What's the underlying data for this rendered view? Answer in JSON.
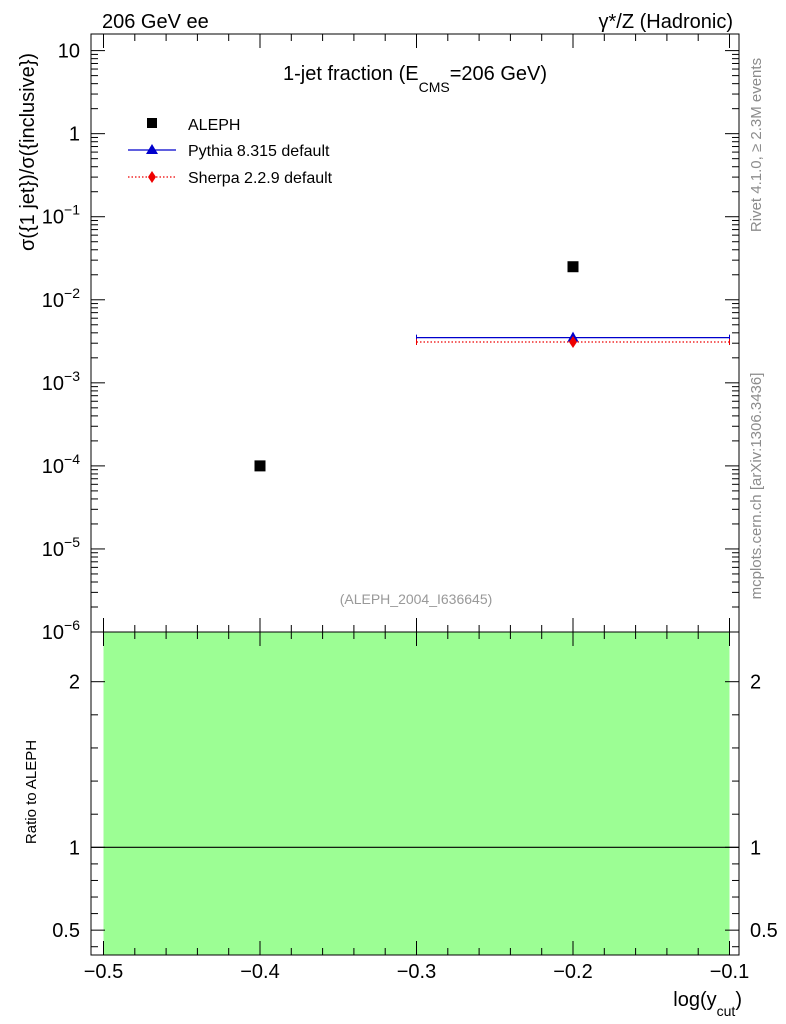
{
  "header": {
    "left_label": "206 GeV ee",
    "right_label": "γ*/Z (Hadronic)"
  },
  "side_labels": {
    "rivet": "Rivet 4.1.0, ≥ 2.3M events",
    "mcplots": "mcplots.cern.ch [arXiv:1306.3436]"
  },
  "colors": {
    "aleph": "#000000",
    "pythia": "#0000cc",
    "sherpa": "#ee0000",
    "ratio_band": "#9cfe94",
    "watermark": "#999999",
    "side_label": "#8c8c8c"
  },
  "chart_data": {
    "type": "scatter",
    "title": "1-jet fraction (E",
    "title_sub": "CMS",
    "title_tail": "=206 GeV)",
    "ylabel": "σ({1 jet})/σ({inclusive})",
    "xlabel": "log(y",
    "xlabel_sub": "cut",
    "xlabel_tail": ")",
    "watermark": "(ALEPH_2004_I636645)",
    "xlim": [
      -0.5,
      -0.1
    ],
    "ylim_log10": [
      -6,
      1.2
    ],
    "x_ticks": [
      -0.5,
      -0.4,
      -0.3,
      -0.2,
      -0.1
    ],
    "x_tick_labels": [
      "−0.5",
      "−0.4",
      "−0.3",
      "−0.2",
      "−0.1"
    ],
    "y_decades": [
      -6,
      -5,
      -4,
      -3,
      -2,
      -1,
      0,
      1
    ],
    "y_tick_labels": [
      {
        "base": "10",
        "exp": "−6"
      },
      {
        "base": "10",
        "exp": "−5"
      },
      {
        "base": "10",
        "exp": "−4"
      },
      {
        "base": "10",
        "exp": "−3"
      },
      {
        "base": "10",
        "exp": "−2"
      },
      {
        "base": "10",
        "exp": "−1"
      },
      {
        "base": "1",
        "exp": ""
      },
      {
        "base": "10",
        "exp": ""
      }
    ],
    "legend": [
      "ALEPH",
      "Pythia 8.315 default",
      "Sherpa 2.2.9 default"
    ],
    "series": [
      {
        "name": "ALEPH",
        "marker": "square",
        "points": [
          {
            "x": -0.4,
            "y": 0.0001
          },
          {
            "x": -0.2,
            "y": 0.025
          }
        ]
      },
      {
        "name": "Pythia 8.315 default",
        "marker": "triangle",
        "line": "solid",
        "points": [
          {
            "x": -0.2,
            "y": 0.0035,
            "xmin": -0.3,
            "xmax": -0.1
          }
        ]
      },
      {
        "name": "Sherpa 2.2.9 default",
        "marker": "diamond",
        "line": "dotted",
        "points": [
          {
            "x": -0.2,
            "y": 0.0031,
            "xmin": -0.3,
            "xmax": -0.1
          }
        ]
      }
    ],
    "ratio": {
      "ylabel": "Ratio to ALEPH",
      "ylim": [
        0.35,
        2.3
      ],
      "y_ticks": [
        0.5,
        1,
        2
      ],
      "y_tick_labels": [
        "0.5",
        "1",
        "2"
      ],
      "band_x": [
        -0.5,
        -0.1
      ],
      "band_y": [
        0.35,
        2.3
      ],
      "reference": 1
    }
  }
}
